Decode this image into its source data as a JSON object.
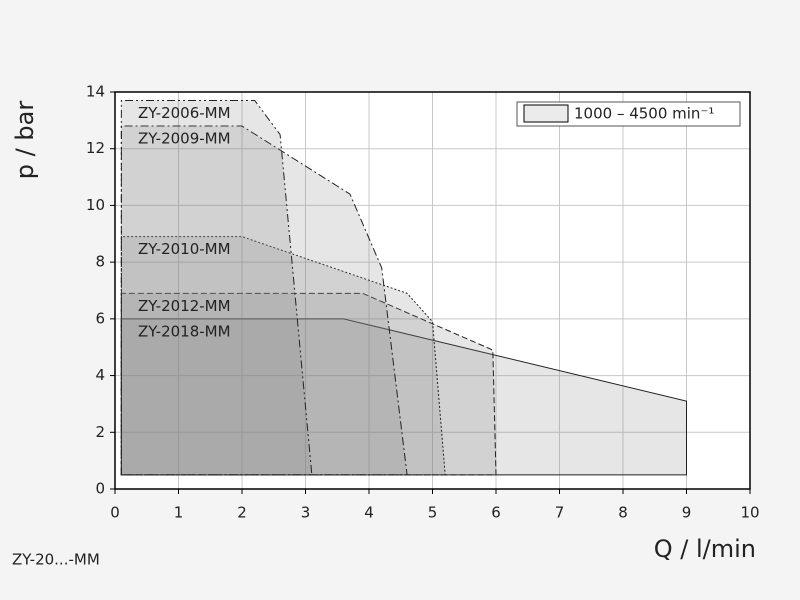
{
  "chart_data": {
    "type": "area",
    "x_label": "Q / l/min",
    "y_label": "p / bar",
    "legend_label": "1000 – 4500 min⁻¹",
    "footnote": "ZY-20...-MM",
    "xlim": [
      0,
      10
    ],
    "ylim": [
      0,
      14
    ],
    "xticks": [
      0,
      1,
      2,
      3,
      4,
      5,
      6,
      7,
      8,
      9,
      10
    ],
    "yticks": [
      0,
      2,
      4,
      6,
      8,
      10,
      12,
      14
    ],
    "grid": true,
    "legend_position": "upper right",
    "fill_opacity": 0.2,
    "series": [
      {
        "name": "ZY-2018-MM",
        "color": "#808080",
        "dash": "solid",
        "x": [
          0.1,
          0.1,
          3.6,
          9,
          9
        ],
        "values": [
          0.5,
          6,
          6,
          3.1,
          0.5
        ]
      },
      {
        "name": "ZY-2012-MM",
        "color": "#808080",
        "dash": "dashed",
        "x": [
          0.1,
          0.1,
          3.9,
          5.95,
          6
        ],
        "values": [
          0.5,
          6.9,
          6.9,
          4.9,
          0.5
        ]
      },
      {
        "name": "ZY-2010-MM",
        "color": "#808080",
        "dash": "dotted",
        "x": [
          0.1,
          0.1,
          2,
          4.6,
          5,
          5.2
        ],
        "values": [
          0.5,
          8.9,
          8.9,
          6.9,
          5.9,
          0.5
        ]
      },
      {
        "name": "ZY-2009-MM",
        "color": "#808080",
        "dash": "dashdot",
        "x": [
          0.1,
          0.1,
          2,
          3.7,
          4.2,
          4.6
        ],
        "values": [
          0.5,
          12.8,
          12.8,
          10.4,
          7.8,
          0.5
        ]
      },
      {
        "name": "ZY-2006-MM",
        "color": "#808080",
        "dash": "dashdotdot",
        "x": [
          0.1,
          0.1,
          2.2,
          2.6,
          3.1
        ],
        "values": [
          0.5,
          13.7,
          13.7,
          12.5,
          0.5
        ]
      }
    ]
  }
}
